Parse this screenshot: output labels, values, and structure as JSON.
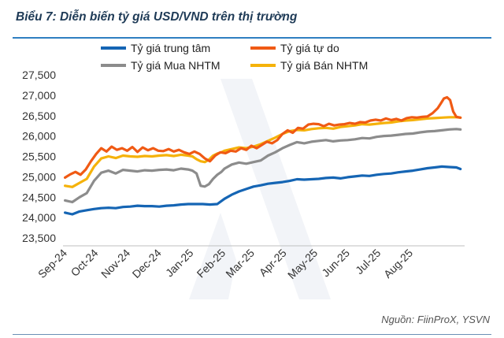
{
  "title": "Biểu 7: Diễn biến tỷ giá USD/VND trên thị trường",
  "source": "Nguồn: FiinProX, YSVN",
  "chart_data": {
    "type": "line",
    "title": "Biểu 7: Diễn biến tỷ giá USD/VND trên thị trường",
    "xlabel": "",
    "ylabel": "",
    "ylim": [
      23500,
      27500
    ],
    "yticks": [
      23500,
      24000,
      24500,
      25000,
      25500,
      26000,
      26500,
      27000,
      27500
    ],
    "ytick_labels": [
      "23,500",
      "24,000",
      "24,500",
      "25,000",
      "25,500",
      "26,000",
      "26,500",
      "27,000",
      "27,500"
    ],
    "xlim": [
      "2024-09-01",
      "2025-09-24"
    ],
    "xtick_labels": [
      "Sep-24",
      "Oct-24",
      "Nov-24",
      "Dec-24",
      "Jan-25",
      "Feb-25",
      "Mar-25",
      "Apr-25",
      "May-25",
      "Jun-25",
      "Jul-25",
      "Aug-25"
    ],
    "xtick_dates": [
      "2024-09-01",
      "2024-10-01",
      "2024-11-01",
      "2024-12-01",
      "2025-01-01",
      "2025-02-01",
      "2025-03-01",
      "2025-04-01",
      "2025-05-01",
      "2025-06-01",
      "2025-07-01",
      "2025-08-01"
    ],
    "grid": false,
    "legend_position": "top",
    "series": [
      {
        "name": "Tỷ giá trung tâm",
        "color": "#1565b4",
        "x": [
          "2024-09-03",
          "2024-09-10",
          "2024-09-17",
          "2024-09-24",
          "2024-10-01",
          "2024-10-08",
          "2024-10-15",
          "2024-10-22",
          "2024-10-29",
          "2024-11-05",
          "2024-11-12",
          "2024-11-19",
          "2024-11-26",
          "2024-12-03",
          "2024-12-10",
          "2024-12-17",
          "2024-12-24",
          "2024-12-31",
          "2025-01-07",
          "2025-01-14",
          "2025-01-21",
          "2025-01-28",
          "2025-02-04",
          "2025-02-11",
          "2025-02-18",
          "2025-02-25",
          "2025-03-04",
          "2025-03-11",
          "2025-03-18",
          "2025-03-25",
          "2025-04-01",
          "2025-04-08",
          "2025-04-15",
          "2025-04-22",
          "2025-04-29",
          "2025-05-06",
          "2025-05-13",
          "2025-05-20",
          "2025-05-27",
          "2025-06-03",
          "2025-06-10",
          "2025-06-17",
          "2025-06-24",
          "2025-07-01",
          "2025-07-08",
          "2025-07-15",
          "2025-07-22",
          "2025-07-29",
          "2025-08-05",
          "2025-08-12",
          "2025-08-19",
          "2025-08-26",
          "2025-09-02",
          "2025-09-09",
          "2025-09-16",
          "2025-09-20"
        ],
        "y": [
          24120,
          24080,
          24150,
          24180,
          24210,
          24230,
          24240,
          24230,
          24260,
          24270,
          24290,
          24280,
          24280,
          24270,
          24290,
          24300,
          24320,
          24330,
          24330,
          24330,
          24320,
          24330,
          24460,
          24560,
          24640,
          24700,
          24760,
          24790,
          24830,
          24850,
          24870,
          24900,
          24940,
          24930,
          24940,
          24950,
          24970,
          24980,
          24960,
          24990,
          25010,
          25030,
          25020,
          25050,
          25070,
          25080,
          25110,
          25130,
          25150,
          25180,
          25210,
          25230,
          25250,
          25240,
          25230,
          25190
        ]
      },
      {
        "name": "Tỷ giá tự do",
        "color": "#f05a14",
        "x": [
          "2024-09-03",
          "2024-09-08",
          "2024-09-13",
          "2024-09-18",
          "2024-09-23",
          "2024-09-28",
          "2024-10-03",
          "2024-10-08",
          "2024-10-13",
          "2024-10-18",
          "2024-10-23",
          "2024-10-28",
          "2024-11-02",
          "2024-11-07",
          "2024-11-12",
          "2024-11-17",
          "2024-11-22",
          "2024-11-27",
          "2024-12-02",
          "2024-12-07",
          "2024-12-12",
          "2024-12-17",
          "2024-12-22",
          "2024-12-27",
          "2025-01-01",
          "2025-01-06",
          "2025-01-11",
          "2025-01-16",
          "2025-01-21",
          "2025-01-26",
          "2025-01-31",
          "2025-02-05",
          "2025-02-10",
          "2025-02-15",
          "2025-02-20",
          "2025-02-25",
          "2025-03-02",
          "2025-03-07",
          "2025-03-12",
          "2025-03-17",
          "2025-03-22",
          "2025-03-27",
          "2025-04-01",
          "2025-04-06",
          "2025-04-11",
          "2025-04-16",
          "2025-04-21",
          "2025-04-26",
          "2025-05-01",
          "2025-05-06",
          "2025-05-11",
          "2025-05-16",
          "2025-05-21",
          "2025-05-26",
          "2025-05-31",
          "2025-06-05",
          "2025-06-10",
          "2025-06-15",
          "2025-06-20",
          "2025-06-25",
          "2025-06-30",
          "2025-07-05",
          "2025-07-10",
          "2025-07-15",
          "2025-07-20",
          "2025-07-25",
          "2025-07-30",
          "2025-08-04",
          "2025-08-09",
          "2025-08-14",
          "2025-08-19",
          "2025-08-24",
          "2025-08-29",
          "2025-09-01",
          "2025-09-04",
          "2025-09-07",
          "2025-09-10",
          "2025-09-13",
          "2025-09-16",
          "2025-09-20"
        ],
        "y": [
          24980,
          25060,
          25120,
          25050,
          25180,
          25380,
          25560,
          25700,
          25620,
          25740,
          25660,
          25700,
          25640,
          25730,
          25610,
          25720,
          25650,
          25700,
          25640,
          25630,
          25680,
          25620,
          25660,
          25600,
          25560,
          25620,
          25560,
          25450,
          25380,
          25520,
          25600,
          25580,
          25640,
          25620,
          25700,
          25660,
          25760,
          25700,
          25780,
          25860,
          25820,
          25900,
          26050,
          26140,
          26080,
          26200,
          26180,
          26280,
          26300,
          26290,
          26240,
          26300,
          26260,
          26280,
          26290,
          26320,
          26300,
          26340,
          26330,
          26380,
          26400,
          26380,
          26430,
          26390,
          26420,
          26380,
          26440,
          26460,
          26450,
          26470,
          26480,
          26560,
          26680,
          26800,
          26920,
          26950,
          26880,
          26600,
          26470,
          26450
        ]
      },
      {
        "name": "Tỷ giá Mua NHTM",
        "color": "#8c8c8c",
        "x": [
          "2024-09-03",
          "2024-09-10",
          "2024-09-17",
          "2024-09-24",
          "2024-10-01",
          "2024-10-08",
          "2024-10-15",
          "2024-10-22",
          "2024-10-29",
          "2024-11-05",
          "2024-11-12",
          "2024-11-19",
          "2024-11-26",
          "2024-12-03",
          "2024-12-10",
          "2024-12-17",
          "2024-12-24",
          "2024-12-31",
          "2025-01-04",
          "2025-01-08",
          "2025-01-12",
          "2025-01-16",
          "2025-01-20",
          "2025-01-24",
          "2025-01-28",
          "2025-02-01",
          "2025-02-04",
          "2025-02-11",
          "2025-02-18",
          "2025-02-25",
          "2025-03-04",
          "2025-03-11",
          "2025-03-18",
          "2025-03-25",
          "2025-04-01",
          "2025-04-08",
          "2025-04-15",
          "2025-04-22",
          "2025-04-29",
          "2025-05-06",
          "2025-05-13",
          "2025-05-20",
          "2025-05-27",
          "2025-06-03",
          "2025-06-10",
          "2025-06-17",
          "2025-06-24",
          "2025-07-01",
          "2025-07-08",
          "2025-07-15",
          "2025-07-22",
          "2025-07-29",
          "2025-08-05",
          "2025-08-12",
          "2025-08-19",
          "2025-08-26",
          "2025-09-02",
          "2025-09-09",
          "2025-09-16",
          "2025-09-20"
        ],
        "y": [
          24420,
          24380,
          24500,
          24600,
          24900,
          25100,
          25150,
          25080,
          25170,
          25150,
          25130,
          25160,
          25150,
          25170,
          25180,
          25160,
          25200,
          25180,
          25150,
          25080,
          24780,
          24760,
          24820,
          24950,
          25050,
          25120,
          25200,
          25300,
          25350,
          25320,
          25360,
          25400,
          25520,
          25600,
          25700,
          25780,
          25850,
          25820,
          25860,
          25880,
          25900,
          25870,
          25890,
          25900,
          25920,
          25950,
          25940,
          25980,
          26000,
          26010,
          26030,
          26050,
          26060,
          26090,
          26110,
          26120,
          26140,
          26160,
          26170,
          26160
        ]
      },
      {
        "name": "Tỷ giá Bán NHTM",
        "color": "#f5b20a",
        "x": [
          "2024-09-03",
          "2024-09-10",
          "2024-09-17",
          "2024-09-24",
          "2024-10-01",
          "2024-10-08",
          "2024-10-15",
          "2024-10-22",
          "2024-10-29",
          "2024-11-05",
          "2024-11-12",
          "2024-11-19",
          "2024-11-26",
          "2024-12-03",
          "2024-12-10",
          "2024-12-17",
          "2024-12-24",
          "2024-12-31",
          "2025-01-04",
          "2025-01-08",
          "2025-01-12",
          "2025-01-16",
          "2025-01-20",
          "2025-01-24",
          "2025-01-28",
          "2025-02-01",
          "2025-02-04",
          "2025-02-11",
          "2025-02-18",
          "2025-02-25",
          "2025-03-04",
          "2025-03-11",
          "2025-03-18",
          "2025-03-25",
          "2025-04-01",
          "2025-04-08",
          "2025-04-15",
          "2025-04-22",
          "2025-04-29",
          "2025-05-06",
          "2025-05-13",
          "2025-05-20",
          "2025-05-27",
          "2025-06-03",
          "2025-06-10",
          "2025-06-17",
          "2025-06-24",
          "2025-07-01",
          "2025-07-08",
          "2025-07-15",
          "2025-07-22",
          "2025-07-29",
          "2025-08-05",
          "2025-08-12",
          "2025-08-19",
          "2025-08-26",
          "2025-09-02",
          "2025-09-09",
          "2025-09-16",
          "2025-09-20"
        ],
        "y": [
          24780,
          24750,
          24850,
          24950,
          25250,
          25450,
          25500,
          25460,
          25520,
          25500,
          25490,
          25510,
          25500,
          25520,
          25530,
          25510,
          25540,
          25520,
          25500,
          25430,
          25380,
          25360,
          25420,
          25520,
          25570,
          25600,
          25640,
          25680,
          25720,
          25700,
          25740,
          25800,
          25880,
          25960,
          26050,
          26120,
          26150,
          26140,
          26170,
          26190,
          26200,
          26180,
          26220,
          26240,
          26260,
          26290,
          26280,
          26300,
          26320,
          26330,
          26360,
          26380,
          26390,
          26410,
          26430,
          26440,
          26450,
          26460,
          26460,
          26450
        ]
      }
    ]
  }
}
